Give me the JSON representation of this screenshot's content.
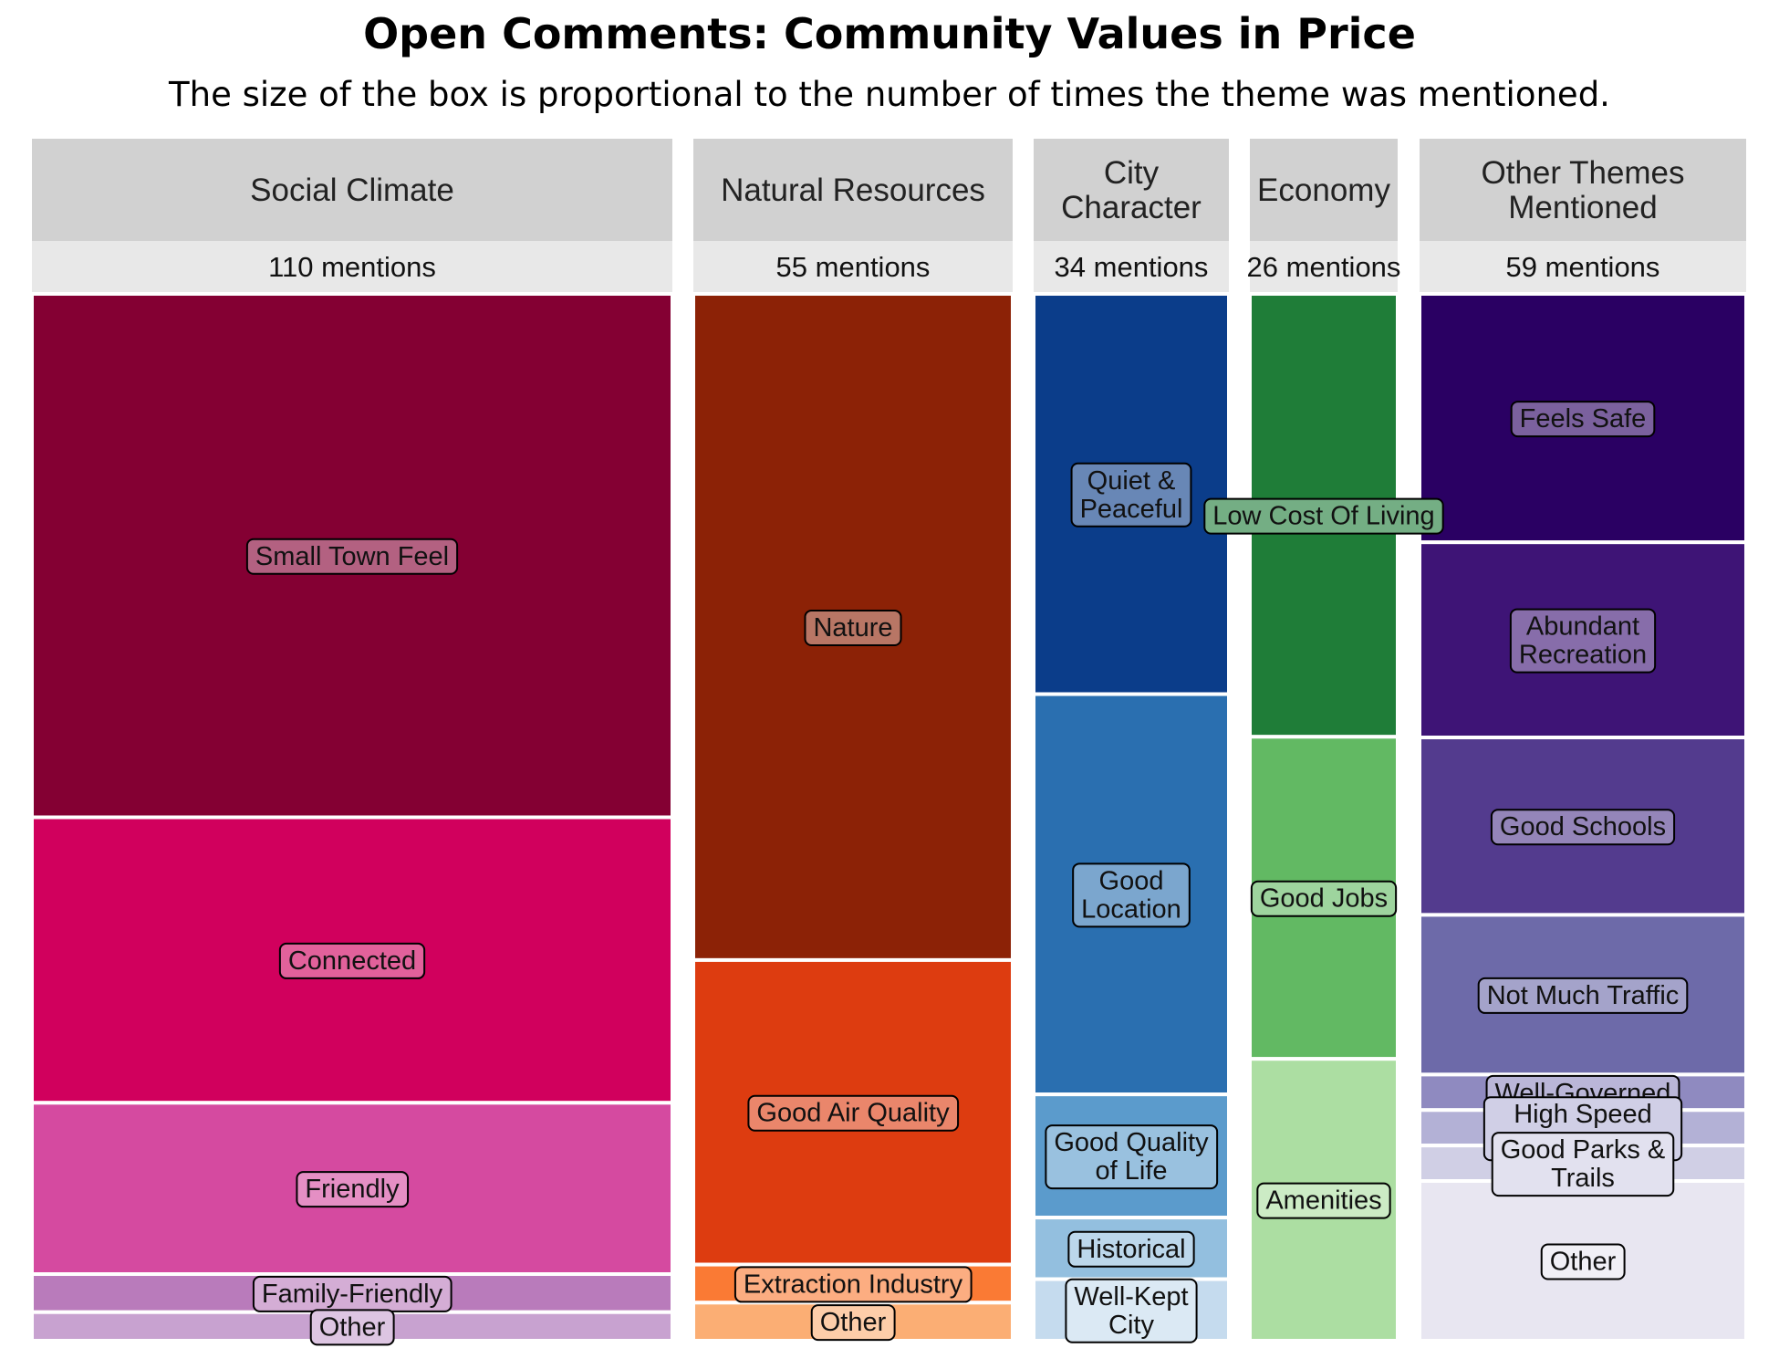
{
  "title": "Open Comments: Community Values in Price",
  "subtitle": "The size of the box is proportional to the number of times the theme was mentioned.",
  "chart_data": {
    "type": "treemap",
    "title": "Open Comments: Community Values in Price",
    "subtitle": "The size of the box is proportional to the number of times the theme was mentioned.",
    "groups": [
      {
        "name": "Social Climate",
        "mentions_label": "110 mentions",
        "total": 110,
        "items": [
          {
            "label": "Small Town Feel",
            "value": 55,
            "color": "#840033"
          },
          {
            "label": "Connected",
            "value": 30,
            "color": "#d1005d"
          },
          {
            "label": "Friendly",
            "value": 18,
            "color": "#d54aa0"
          },
          {
            "label": "Family-Friendly",
            "value": 4,
            "color": "#b97bbb"
          },
          {
            "label": "Other",
            "value": 3,
            "color": "#c8a2d0"
          }
        ]
      },
      {
        "name": "Natural Resources",
        "mentions_label": "55 mentions",
        "total": 55,
        "items": [
          {
            "label": "Nature",
            "value": 35,
            "color": "#8c2206"
          },
          {
            "label": "Good Air Quality",
            "value": 16,
            "color": "#dd3c10"
          },
          {
            "label": "Extraction Industry",
            "value": 2,
            "color": "#fa7a34"
          },
          {
            "label": "Other",
            "value": 2,
            "color": "#fbae74"
          }
        ]
      },
      {
        "name": "City Character",
        "mentions_label": "34 mentions",
        "total": 34,
        "items": [
          {
            "label": "Quiet & Peaceful",
            "value": 13,
            "color": "#0b3d8a"
          },
          {
            "label": "Good Location",
            "value": 13,
            "color": "#2a6fb0"
          },
          {
            "label": "Good Quality of Life",
            "value": 4,
            "color": "#5b9bcc"
          },
          {
            "label": "Historical",
            "value": 2,
            "color": "#93bfdf"
          },
          {
            "label": "Well-Kept City",
            "value": 2,
            "color": "#c5dbee"
          }
        ]
      },
      {
        "name": "Economy",
        "mentions_label": "26 mentions",
        "total": 26,
        "items": [
          {
            "label": "Low Cost Of Living",
            "value": 11,
            "color": "#1f7d38"
          },
          {
            "label": "Good Jobs",
            "value": 8,
            "color": "#62b963"
          },
          {
            "label": "Amenities",
            "value": 7,
            "color": "#acdea2"
          }
        ]
      },
      {
        "name": "Other Themes Mentioned",
        "mentions_label": "59 mentions",
        "total": 59,
        "items": [
          {
            "label": "Feels Safe",
            "value": 14,
            "color": "#2a0063"
          },
          {
            "label": "Abundant Recreation",
            "value": 11,
            "color": "#3e1476"
          },
          {
            "label": "Good Schools",
            "value": 10,
            "color": "#533b8e"
          },
          {
            "label": "Not Much Traffic",
            "value": 9,
            "color": "#6d6aa9"
          },
          {
            "label": "Well-Governed",
            "value": 2,
            "color": "#8f8ac0"
          },
          {
            "label": "High Speed Internet Access",
            "value": 2,
            "color": "#b3b1d6"
          },
          {
            "label": "Good Parks & Trails",
            "value": 2,
            "color": "#d0cfe5"
          },
          {
            "label": "Other",
            "value": 9,
            "color": "#e8e6f1"
          }
        ]
      }
    ]
  }
}
